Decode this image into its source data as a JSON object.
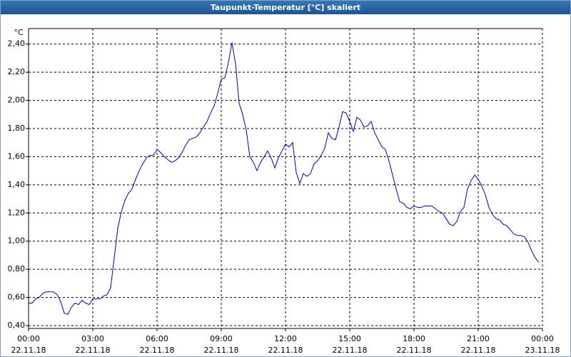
{
  "chart_data": {
    "type": "line",
    "title": "Taupunkt-Temperatur [°C] skaliert",
    "y_unit": "°C",
    "color": "#0000b0",
    "grid": true,
    "xlim": [
      0,
      1440
    ],
    "xticks": [
      {
        "value": 0,
        "label": "00:00"
      },
      {
        "value": 180,
        "label": "03:00"
      },
      {
        "value": 360,
        "label": "06:00"
      },
      {
        "value": 540,
        "label": "09:00"
      },
      {
        "value": 720,
        "label": "12:00"
      },
      {
        "value": 900,
        "label": "15:00"
      },
      {
        "value": 1080,
        "label": "18:00"
      },
      {
        "value": 1260,
        "label": "21:00"
      },
      {
        "value": 1440,
        "label": "00:00"
      }
    ],
    "xtick_dates": [
      "22.11.18",
      "22.11.18",
      "22.11.18",
      "22.11.18",
      "22.11.18",
      "22.11.18",
      "22.11.18",
      "22.11.18",
      "23.11.18"
    ],
    "ylim": [
      0.38,
      2.51
    ],
    "yticks": [
      {
        "value": 0.4,
        "label": "0,40"
      },
      {
        "value": 0.6,
        "label": "0,60"
      },
      {
        "value": 0.8,
        "label": "0,80"
      },
      {
        "value": 1.0,
        "label": "1,00"
      },
      {
        "value": 1.2,
        "label": "1,20"
      },
      {
        "value": 1.4,
        "label": "1,40"
      },
      {
        "value": 1.6,
        "label": "1,60"
      },
      {
        "value": 1.8,
        "label": "1,80"
      },
      {
        "value": 2.0,
        "label": "2,00"
      },
      {
        "value": 2.2,
        "label": "2,20"
      },
      {
        "value": 2.4,
        "label": "2,40"
      }
    ],
    "x": [
      0,
      10,
      20,
      30,
      40,
      50,
      60,
      70,
      80,
      90,
      100,
      110,
      120,
      130,
      140,
      150,
      160,
      170,
      180,
      190,
      200,
      210,
      220,
      230,
      240,
      250,
      260,
      270,
      280,
      290,
      300,
      310,
      320,
      330,
      340,
      350,
      360,
      370,
      380,
      390,
      400,
      410,
      420,
      430,
      440,
      450,
      460,
      470,
      480,
      490,
      500,
      510,
      520,
      530,
      540,
      550,
      560,
      570,
      580,
      590,
      600,
      610,
      620,
      630,
      640,
      650,
      660,
      670,
      680,
      690,
      700,
      710,
      720,
      730,
      740,
      750,
      760,
      770,
      780,
      790,
      800,
      810,
      820,
      830,
      840,
      850,
      860,
      870,
      880,
      890,
      900,
      910,
      920,
      930,
      940,
      950,
      960,
      970,
      980,
      990,
      1000,
      1010,
      1020,
      1030,
      1040,
      1050,
      1060,
      1070,
      1080,
      1090,
      1100,
      1110,
      1120,
      1130,
      1140,
      1150,
      1160,
      1170,
      1180,
      1190,
      1200,
      1210,
      1220,
      1230,
      1240,
      1250,
      1260,
      1270,
      1280,
      1290,
      1300,
      1310,
      1320,
      1330,
      1340,
      1350,
      1360,
      1370,
      1380,
      1390,
      1400,
      1410,
      1420,
      1430
    ],
    "values": [
      0.56,
      0.56,
      0.59,
      0.6,
      0.63,
      0.64,
      0.64,
      0.64,
      0.62,
      0.57,
      0.49,
      0.48,
      0.53,
      0.56,
      0.55,
      0.58,
      0.56,
      0.55,
      0.59,
      0.59,
      0.59,
      0.61,
      0.62,
      0.67,
      0.88,
      1.09,
      1.21,
      1.29,
      1.34,
      1.37,
      1.44,
      1.5,
      1.55,
      1.59,
      1.61,
      1.61,
      1.65,
      1.63,
      1.6,
      1.58,
      1.56,
      1.57,
      1.59,
      1.63,
      1.68,
      1.72,
      1.73,
      1.74,
      1.77,
      1.81,
      1.85,
      1.91,
      1.96,
      2.05,
      2.15,
      2.16,
      2.27,
      2.41,
      2.26,
      1.98,
      1.9,
      1.79,
      1.6,
      1.56,
      1.5,
      1.56,
      1.6,
      1.64,
      1.59,
      1.52,
      1.59,
      1.64,
      1.69,
      1.67,
      1.7,
      1.49,
      1.41,
      1.48,
      1.46,
      1.48,
      1.55,
      1.57,
      1.61,
      1.66,
      1.77,
      1.73,
      1.72,
      1.81,
      1.92,
      1.91,
      1.85,
      1.78,
      1.88,
      1.86,
      1.81,
      1.82,
      1.85,
      1.77,
      1.72,
      1.67,
      1.65,
      1.57,
      1.47,
      1.37,
      1.28,
      1.27,
      1.24,
      1.23,
      1.25,
      1.24,
      1.24,
      1.25,
      1.25,
      1.25,
      1.23,
      1.21,
      1.2,
      1.16,
      1.12,
      1.11,
      1.14,
      1.21,
      1.24,
      1.37,
      1.43,
      1.47,
      1.44,
      1.39,
      1.33,
      1.24,
      1.19,
      1.16,
      1.15,
      1.12,
      1.11,
      1.08,
      1.05,
      1.04,
      1.04,
      1.03,
      0.99,
      0.93,
      0.88,
      0.85
    ]
  }
}
